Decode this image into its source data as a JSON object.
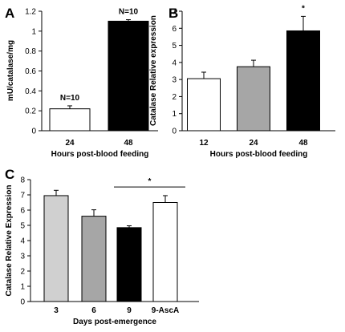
{
  "chart_data": [
    {
      "type": "bar",
      "panel": "A",
      "categories": [
        "24",
        "48"
      ],
      "values": [
        0.22,
        1.1
      ],
      "errors": [
        0.03,
        0.015
      ],
      "colors": [
        "#ffffff",
        "#000000"
      ],
      "annotations": [
        "N=10",
        "N=10"
      ],
      "xlabel": "Hours post-blood feeding",
      "ylabel": "mU/catalase/mg",
      "ylim": [
        0,
        1.2
      ],
      "yticks": [
        0,
        0.2,
        0.4,
        0.6,
        0.8,
        1,
        1.2
      ],
      "ytick_labels": [
        "0",
        "0.2",
        "0.4",
        "0.6",
        "0.8",
        "1",
        "1.2"
      ]
    },
    {
      "type": "bar",
      "panel": "B",
      "categories": [
        "12",
        "24",
        "48"
      ],
      "values": [
        3.05,
        3.75,
        5.85
      ],
      "errors": [
        0.38,
        0.38,
        0.85
      ],
      "colors": [
        "#ffffff",
        "#a6a6a6",
        "#000000"
      ],
      "annotations": [
        "",
        "",
        "*"
      ],
      "xlabel": "Hours post-blood feeding",
      "ylabel": "Catalase Relative expression",
      "ylim": [
        0,
        7
      ],
      "yticks": [
        0,
        1,
        2,
        3,
        4,
        5,
        6,
        7
      ],
      "ytick_labels": [
        "0",
        "1",
        "2",
        "3",
        "4",
        "5",
        "6",
        "7"
      ]
    },
    {
      "type": "bar",
      "panel": "C",
      "categories": [
        "3",
        "6",
        "9",
        "9-AscA"
      ],
      "values": [
        6.95,
        5.6,
        4.85,
        6.5
      ],
      "errors": [
        0.35,
        0.42,
        0.12,
        0.45
      ],
      "colors": [
        "#d0d0d0",
        "#a6a6a6",
        "#000000",
        "#ffffff"
      ],
      "significance": {
        "label": "*",
        "from": "9",
        "to": "9-AscA"
      },
      "xlabel": "Days post-emergence",
      "ylabel": "Catalase Relative Expression",
      "ylim": [
        0,
        8
      ],
      "yticks": [
        0,
        1,
        2,
        3,
        4,
        5,
        6,
        7,
        8
      ],
      "ytick_labels": [
        "0",
        "1",
        "2",
        "3",
        "4",
        "5",
        "6",
        "7",
        "8"
      ]
    }
  ]
}
